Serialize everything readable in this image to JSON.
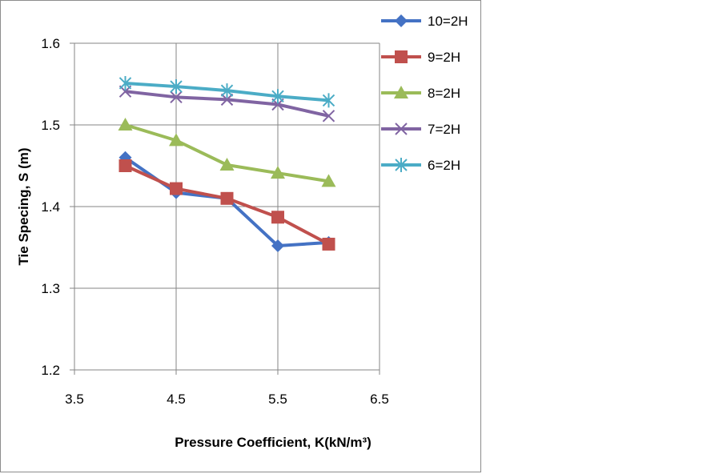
{
  "chart_data": {
    "type": "line",
    "title": "",
    "xlabel": "Pressure Coefficient, K(kN/m³)",
    "ylabel": "Tie Specing, S (m)",
    "xlim": [
      3.5,
      6.5
    ],
    "ylim": [
      1.2,
      1.6
    ],
    "xticks": [
      "3.5",
      "4.5",
      "5.5",
      "6.5"
    ],
    "yticks": [
      "1.2",
      "1.3",
      "1.4",
      "1.5",
      "1.6"
    ],
    "grid": true,
    "legend_position": "right",
    "x": [
      4.0,
      4.5,
      5.0,
      5.5,
      6.0
    ],
    "series": [
      {
        "name": "10=2H",
        "color": "#4472C4",
        "marker": "diamond",
        "values": [
          1.46,
          1.417,
          1.41,
          1.352,
          1.356
        ]
      },
      {
        "name": "9=2H",
        "color": "#C0504D",
        "marker": "square",
        "values": [
          1.45,
          1.422,
          1.41,
          1.387,
          1.354
        ]
      },
      {
        "name": "8=2H",
        "color": "#9BBB59",
        "marker": "triangle",
        "values": [
          1.5,
          1.481,
          1.451,
          1.441,
          1.431
        ]
      },
      {
        "name": "7=2H",
        "color": "#8064A2",
        "marker": "x",
        "values": [
          1.541,
          1.534,
          1.531,
          1.525,
          1.511
        ]
      },
      {
        "name": "6=2H",
        "color": "#4BACC6",
        "marker": "star",
        "values": [
          1.551,
          1.547,
          1.542,
          1.535,
          1.53
        ]
      }
    ]
  }
}
